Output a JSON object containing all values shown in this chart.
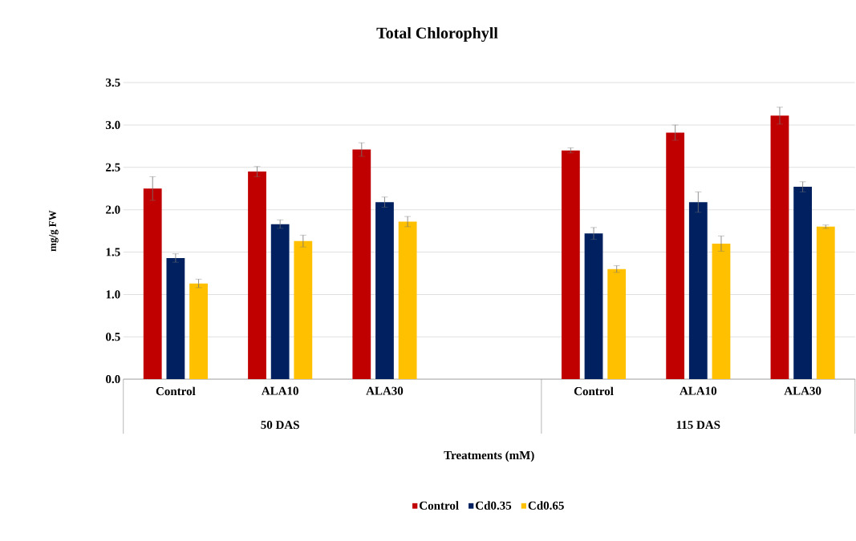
{
  "chart_data": {
    "type": "bar",
    "title": "Total Chlorophyll",
    "xlabel": "Treatments (mM)",
    "ylabel": "mg/g FW",
    "categories": [
      "Control",
      "ALA10",
      "ALA30",
      null,
      "Control",
      "ALA10",
      "ALA30"
    ],
    "annotations": [
      "50 DAS",
      "115 DAS"
    ],
    "series": [
      {
        "name": "Control",
        "color": "#c00000",
        "values": [
          2.25,
          2.45,
          2.71,
          null,
          2.7,
          2.91,
          3.11
        ],
        "errors": [
          0.14,
          0.06,
          0.08,
          null,
          0.03,
          0.09,
          0.1
        ]
      },
      {
        "name": "Cd0.35",
        "color": "#002060",
        "values": [
          1.43,
          1.83,
          2.09,
          null,
          1.72,
          2.09,
          2.27
        ],
        "errors": [
          0.05,
          0.05,
          0.06,
          null,
          0.07,
          0.12,
          0.06
        ]
      },
      {
        "name": "Cd0.65",
        "color": "#ffc000",
        "values": [
          1.13,
          1.63,
          1.86,
          null,
          1.3,
          1.6,
          1.8
        ],
        "errors": [
          0.05,
          0.07,
          0.06,
          null,
          0.04,
          0.09,
          0.02
        ]
      }
    ],
    "ylim": [
      0,
      3.5
    ],
    "yticks": [
      {
        "value": 0,
        "label": "0.0"
      },
      {
        "value": 0.5,
        "label": "0.5"
      },
      {
        "value": 1,
        "label": "1.0"
      },
      {
        "value": 1.5,
        "label": "1.5"
      },
      {
        "value": 2,
        "label": "2.0"
      },
      {
        "value": 2.5,
        "label": "2.5"
      },
      {
        "value": 3,
        "label": "3.0"
      },
      {
        "value": 3.5,
        "label": "3.5"
      }
    ],
    "grid": "y",
    "legend": "bottom"
  }
}
